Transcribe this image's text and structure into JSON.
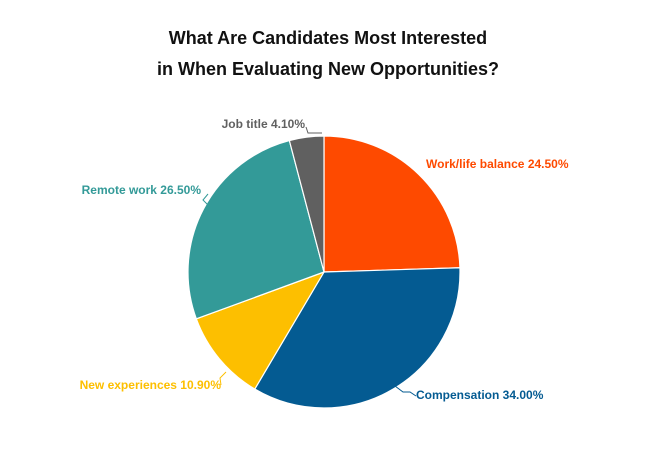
{
  "chart_data": {
    "type": "pie",
    "title_lines": [
      "What Are Candidates Most Interested",
      "in When Evaluating New Opportunities?"
    ],
    "slices": [
      {
        "label": "Work/life balance",
        "display": "Work/life balance 24.50%",
        "value": 24.5,
        "color": "#fe4a00"
      },
      {
        "label": "Compensation",
        "display": "Compensation 34.00%",
        "value": 34.0,
        "color": "#045b92"
      },
      {
        "label": "New experiences",
        "display": "New experiences 10.90%",
        "value": 10.9,
        "color": "#fdbf00"
      },
      {
        "label": "Remote work",
        "display": "Remote work 26.50%",
        "value": 26.5,
        "color": "#339a98"
      },
      {
        "label": "Job title",
        "display": "Job title 4.10%",
        "value": 4.1,
        "color": "#606060"
      }
    ]
  }
}
